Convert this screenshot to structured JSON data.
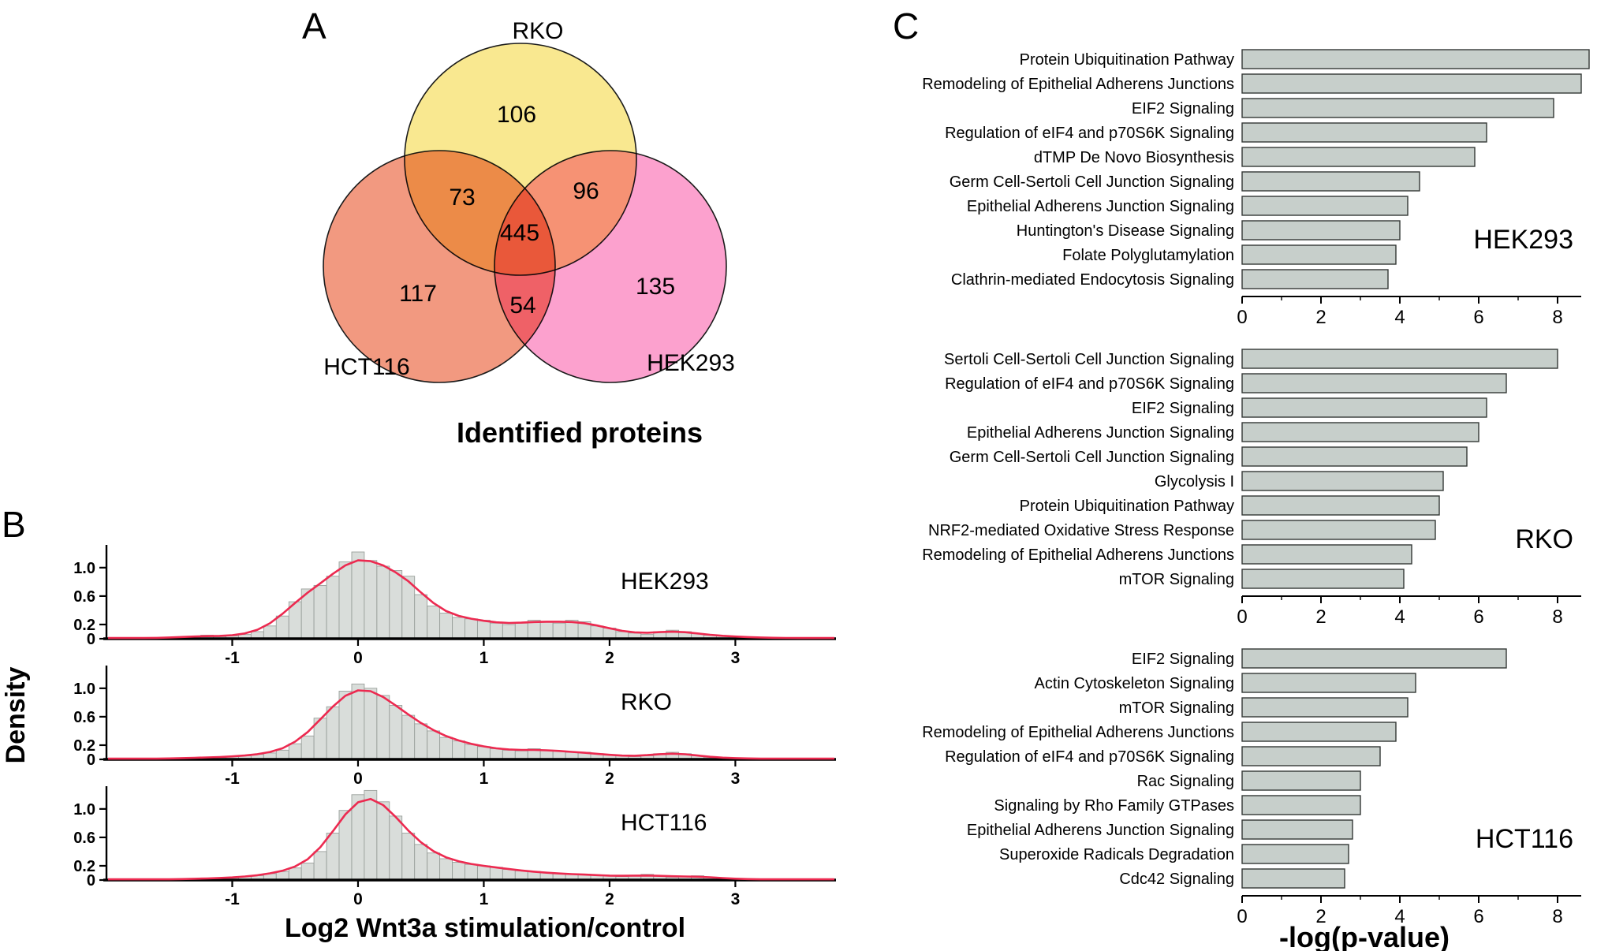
{
  "figure": {
    "panel_a_label": "A",
    "panel_b_label": "B",
    "panel_c_label": "C"
  },
  "panel_a": {
    "caption": "Identified proteins",
    "venn": {
      "top_set": "RKO",
      "bottom_left_set": "HCT116",
      "bottom_right_set": "HEK293",
      "colors": {
        "rko": "#f8e47c",
        "hct116": "#f0876a",
        "hek293": "#fb90c6"
      },
      "counts": {
        "rko_only": "106",
        "rko_hct116": "73",
        "rko_hek293": "96",
        "all_three": "445",
        "hct116_only": "117",
        "hct116_hek293": "54",
        "hek293_only": "135"
      }
    }
  },
  "panel_b": {
    "ylabel": "Density",
    "xlabel": "Log2 Wnt3a stimulation/control",
    "curve_color": "#ec2a50",
    "bar_fill": "#d9ddda",
    "bar_stroke": "#9aa09c"
  },
  "panel_c": {
    "xlabel": "-log(p-value)",
    "bar_fill": "#c7cfcb",
    "bar_stroke": "#343836"
  },
  "chart_data": [
    {
      "type": "venn",
      "title": "Identified proteins",
      "sets": [
        "RKO",
        "HCT116",
        "HEK293"
      ],
      "values": {
        "RKO_only": 106,
        "HCT116_only": 117,
        "HEK293_only": 135,
        "RKO_and_HCT116": 73,
        "RKO_and_HEK293": 96,
        "HCT116_and_HEK293": 54,
        "RKO_and_HCT116_and_HEK293": 445
      }
    },
    {
      "type": "area",
      "subtype": "histogram-density",
      "name": "HEK293",
      "xlabel": "Log2 Wnt3a stimulation/control",
      "ylabel": "Density",
      "xlim": [
        -2,
        3.8
      ],
      "ylim": [
        0,
        1.32
      ],
      "xticks": [
        -1,
        0,
        1,
        2,
        3
      ],
      "yticks": [
        {
          "v": 0,
          "label": "0"
        },
        {
          "v": 0.2,
          "label": "0.2"
        },
        {
          "v": 0.6,
          "label": "0.6"
        },
        {
          "v": 1.0,
          "label": "1.0"
        }
      ],
      "histogram": {
        "bin_start": -1.9,
        "bin_width": 0.1,
        "densities": [
          0.0,
          0.0,
          0.01,
          0.01,
          0.02,
          0.02,
          0.03,
          0.05,
          0.03,
          0.04,
          0.06,
          0.1,
          0.18,
          0.32,
          0.52,
          0.7,
          0.75,
          0.88,
          1.08,
          1.22,
          1.1,
          1.02,
          0.96,
          0.88,
          0.62,
          0.46,
          0.36,
          0.3,
          0.28,
          0.26,
          0.22,
          0.2,
          0.22,
          0.26,
          0.24,
          0.22,
          0.26,
          0.24,
          0.18,
          0.15,
          0.1,
          0.08,
          0.06,
          0.1,
          0.12,
          0.1,
          0.07,
          0.05,
          0.04,
          0.03,
          0.02,
          0.02,
          0.01,
          0.01,
          0.01,
          0.01
        ]
      }
    },
    {
      "type": "area",
      "subtype": "histogram-density",
      "name": "RKO",
      "xlabel": "Log2 Wnt3a stimulation/control",
      "ylabel": "Density",
      "xlim": [
        -2,
        3.8
      ],
      "ylim": [
        0,
        1.32
      ],
      "xticks": [
        -1,
        0,
        1,
        2,
        3
      ],
      "yticks": [
        {
          "v": 0,
          "label": "0"
        },
        {
          "v": 0.2,
          "label": "0.2"
        },
        {
          "v": 0.6,
          "label": "0.6"
        },
        {
          "v": 1.0,
          "label": "1.0"
        }
      ],
      "histogram": {
        "bin_start": -1.9,
        "bin_width": 0.1,
        "densities": [
          0.0,
          0.0,
          0.01,
          0.01,
          0.01,
          0.02,
          0.02,
          0.03,
          0.03,
          0.04,
          0.05,
          0.07,
          0.09,
          0.13,
          0.22,
          0.33,
          0.58,
          0.74,
          0.96,
          1.06,
          1.0,
          0.9,
          0.76,
          0.62,
          0.5,
          0.4,
          0.31,
          0.26,
          0.21,
          0.18,
          0.15,
          0.13,
          0.12,
          0.15,
          0.13,
          0.12,
          0.1,
          0.1,
          0.08,
          0.06,
          0.05,
          0.04,
          0.05,
          0.08,
          0.1,
          0.08,
          0.05,
          0.03,
          0.02,
          0.02,
          0.01,
          0.01,
          0.01,
          0.0,
          0.0,
          0.0
        ]
      }
    },
    {
      "type": "area",
      "subtype": "histogram-density",
      "name": "HCT116",
      "xlabel": "Log2 Wnt3a stimulation/control",
      "ylabel": "Density",
      "xlim": [
        -2,
        3.8
      ],
      "ylim": [
        0,
        1.32
      ],
      "xticks": [
        -1,
        0,
        1,
        2,
        3
      ],
      "yticks": [
        {
          "v": 0,
          "label": "0"
        },
        {
          "v": 0.2,
          "label": "0.2"
        },
        {
          "v": 0.6,
          "label": "0.6"
        },
        {
          "v": 1.0,
          "label": "1.0"
        }
      ],
      "histogram": {
        "bin_start": -1.9,
        "bin_width": 0.1,
        "densities": [
          0.0,
          0.0,
          0.0,
          0.01,
          0.01,
          0.01,
          0.02,
          0.02,
          0.03,
          0.03,
          0.05,
          0.06,
          0.09,
          0.12,
          0.17,
          0.24,
          0.4,
          0.66,
          0.98,
          1.2,
          1.26,
          1.1,
          0.9,
          0.66,
          0.5,
          0.38,
          0.3,
          0.25,
          0.22,
          0.2,
          0.18,
          0.15,
          0.13,
          0.12,
          0.1,
          0.09,
          0.08,
          0.08,
          0.07,
          0.06,
          0.05,
          0.06,
          0.08,
          0.06,
          0.04,
          0.05,
          0.06,
          0.04,
          0.02,
          0.02,
          0.01,
          0.01,
          0.01,
          0.0,
          0.0,
          0.0
        ]
      }
    },
    {
      "type": "bar",
      "orientation": "horizontal",
      "name": "HEK293",
      "xlabel": "-log(p-value)",
      "xlim": [
        0,
        9
      ],
      "xticks": [
        0,
        2,
        4,
        6,
        8
      ],
      "categories": [
        "Protein Ubiquitination Pathway",
        "Remodeling of Epithelial Adherens Junctions",
        "EIF2 Signaling",
        "Regulation of eIF4 and p70S6K Signaling",
        "dTMP De Novo Biosynthesis",
        "Germ Cell-Sertoli Cell Junction Signaling",
        "Epithelial Adherens Junction Signaling",
        "Huntington's Disease Signaling",
        "Folate Polyglutamylation",
        "Clathrin-mediated Endocytosis Signaling"
      ],
      "values": [
        8.8,
        8.6,
        7.9,
        6.2,
        5.9,
        4.5,
        4.2,
        4.0,
        3.9,
        3.7
      ]
    },
    {
      "type": "bar",
      "orientation": "horizontal",
      "name": "RKO",
      "xlabel": "-log(p-value)",
      "xlim": [
        0,
        9
      ],
      "xticks": [
        0,
        2,
        4,
        6,
        8
      ],
      "categories": [
        "Sertoli Cell-Sertoli Cell Junction Signaling",
        "Regulation of eIF4 and p70S6K Signaling",
        "EIF2 Signaling",
        "Epithelial Adherens Junction Signaling",
        "Germ Cell-Sertoli Cell Junction Signaling",
        "Glycolysis I",
        "Protein Ubiquitination Pathway",
        "NRF2-mediated Oxidative Stress Response",
        "Remodeling of Epithelial Adherens Junctions",
        "mTOR Signaling"
      ],
      "values": [
        8.0,
        6.7,
        6.2,
        6.0,
        5.7,
        5.1,
        5.0,
        4.9,
        4.3,
        4.1
      ]
    },
    {
      "type": "bar",
      "orientation": "horizontal",
      "name": "HCT116",
      "xlabel": "-log(p-value)",
      "xlim": [
        0,
        9
      ],
      "xticks": [
        0,
        2,
        4,
        6,
        8
      ],
      "categories": [
        "EIF2 Signaling",
        "Actin Cytoskeleton Signaling",
        "mTOR Signaling",
        "Remodeling of Epithelial Adherens Junctions",
        "Regulation of eIF4 and p70S6K Signaling",
        "Rac Signaling",
        "Signaling by Rho Family GTPases",
        "Epithelial Adherens Junction Signaling",
        "Superoxide Radicals Degradation",
        "Cdc42 Signaling"
      ],
      "values": [
        6.7,
        4.4,
        4.2,
        3.9,
        3.5,
        3.0,
        3.0,
        2.8,
        2.7,
        2.6
      ]
    }
  ]
}
